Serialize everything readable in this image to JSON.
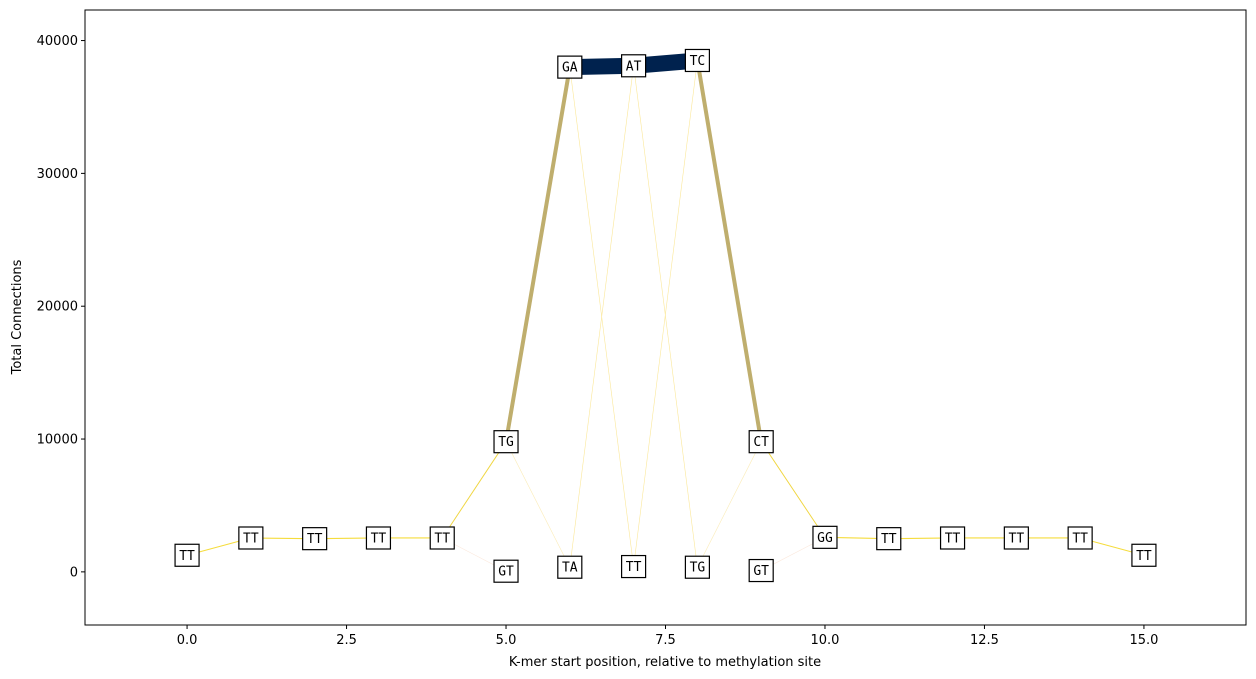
{
  "chart_data": {
    "type": "network",
    "title": "",
    "xlabel": "K-mer start position, relative to methylation site",
    "ylabel": "Total Connections",
    "xlim": [
      -1.6,
      16.6
    ],
    "ylim": [
      -4000,
      42300
    ],
    "xticks": [
      0.0,
      2.5,
      5.0,
      7.5,
      10.0,
      12.5,
      15.0
    ],
    "xtick_labels": [
      "0.0",
      "2.5",
      "5.0",
      "7.5",
      "10.0",
      "12.5",
      "15.0"
    ],
    "yticks": [
      0,
      10000,
      20000,
      30000,
      40000
    ],
    "ytick_labels": [
      "0",
      "10000",
      "20000",
      "30000",
      "40000"
    ],
    "grid": false,
    "nodes": [
      {
        "id": "n0",
        "label": "TT",
        "x": 0,
        "y": 1250
      },
      {
        "id": "n1",
        "label": "TT",
        "x": 1,
        "y": 2550
      },
      {
        "id": "n2",
        "label": "TT",
        "x": 2,
        "y": 2500
      },
      {
        "id": "n3",
        "label": "TT",
        "x": 3,
        "y": 2550
      },
      {
        "id": "n4",
        "label": "TT",
        "x": 4,
        "y": 2550
      },
      {
        "id": "n5a",
        "label": "TG",
        "x": 5,
        "y": 9800
      },
      {
        "id": "n5b",
        "label": "GT",
        "x": 5,
        "y": 50
      },
      {
        "id": "n6a",
        "label": "GA",
        "x": 6,
        "y": 38000
      },
      {
        "id": "n6b",
        "label": "TA",
        "x": 6,
        "y": 350
      },
      {
        "id": "n7a",
        "label": "AT",
        "x": 7,
        "y": 38100
      },
      {
        "id": "n7b",
        "label": "TT",
        "x": 7,
        "y": 400
      },
      {
        "id": "n8a",
        "label": "TC",
        "x": 8,
        "y": 38500
      },
      {
        "id": "n8b",
        "label": "TG",
        "x": 8,
        "y": 350
      },
      {
        "id": "n9a",
        "label": "CT",
        "x": 9,
        "y": 9800
      },
      {
        "id": "n9b",
        "label": "GT",
        "x": 9,
        "y": 100
      },
      {
        "id": "n10",
        "label": "GG",
        "x": 10,
        "y": 2600
      },
      {
        "id": "n11",
        "label": "TT",
        "x": 11,
        "y": 2500
      },
      {
        "id": "n12",
        "label": "TT",
        "x": 12,
        "y": 2550
      },
      {
        "id": "n13",
        "label": "TT",
        "x": 13,
        "y": 2550
      },
      {
        "id": "n14",
        "label": "TT",
        "x": 14,
        "y": 2550
      },
      {
        "id": "n15",
        "label": "TT",
        "x": 15,
        "y": 1250
      }
    ],
    "edges": [
      {
        "from": "n0",
        "to": "n1",
        "weight": 0.06,
        "color": "#f5dc3c"
      },
      {
        "from": "n1",
        "to": "n2",
        "weight": 0.07,
        "color": "#f5dc3c"
      },
      {
        "from": "n2",
        "to": "n3",
        "weight": 0.07,
        "color": "#f5dc3c"
      },
      {
        "from": "n3",
        "to": "n4",
        "weight": 0.07,
        "color": "#f5dc3c"
      },
      {
        "from": "n4",
        "to": "n5a",
        "weight": 0.06,
        "color": "#f0d640"
      },
      {
        "from": "n4",
        "to": "n5b",
        "weight": 0.01,
        "color": "#fbe8dc"
      },
      {
        "from": "n5a",
        "to": "n6a",
        "weight": 0.25,
        "color": "#bfae6d"
      },
      {
        "from": "n5a",
        "to": "n6b",
        "weight": 0.01,
        "color": "#fbecb8"
      },
      {
        "from": "n6a",
        "to": "n7a",
        "weight": 1.0,
        "color": "#00224e"
      },
      {
        "from": "n6a",
        "to": "n7b",
        "weight": 0.005,
        "color": "#fbe89a"
      },
      {
        "from": "n6b",
        "to": "n7a",
        "weight": 0.005,
        "color": "#fbe89a"
      },
      {
        "from": "n7a",
        "to": "n8a",
        "weight": 1.0,
        "color": "#00224e"
      },
      {
        "from": "n7a",
        "to": "n8b",
        "weight": 0.005,
        "color": "#fbe89a"
      },
      {
        "from": "n7b",
        "to": "n8a",
        "weight": 0.005,
        "color": "#fbe89a"
      },
      {
        "from": "n8a",
        "to": "n9a",
        "weight": 0.25,
        "color": "#bfae6d"
      },
      {
        "from": "n8b",
        "to": "n9a",
        "weight": 0.01,
        "color": "#fbecb8"
      },
      {
        "from": "n9a",
        "to": "n10",
        "weight": 0.06,
        "color": "#f0d640"
      },
      {
        "from": "n9b",
        "to": "n10",
        "weight": 0.01,
        "color": "#fbe8dc"
      },
      {
        "from": "n10",
        "to": "n11",
        "weight": 0.07,
        "color": "#f5dc3c"
      },
      {
        "from": "n11",
        "to": "n12",
        "weight": 0.07,
        "color": "#f5dc3c"
      },
      {
        "from": "n12",
        "to": "n13",
        "weight": 0.07,
        "color": "#f5dc3c"
      },
      {
        "from": "n13",
        "to": "n14",
        "weight": 0.07,
        "color": "#f5dc3c"
      },
      {
        "from": "n14",
        "to": "n15",
        "weight": 0.06,
        "color": "#f5dc3c"
      }
    ]
  }
}
